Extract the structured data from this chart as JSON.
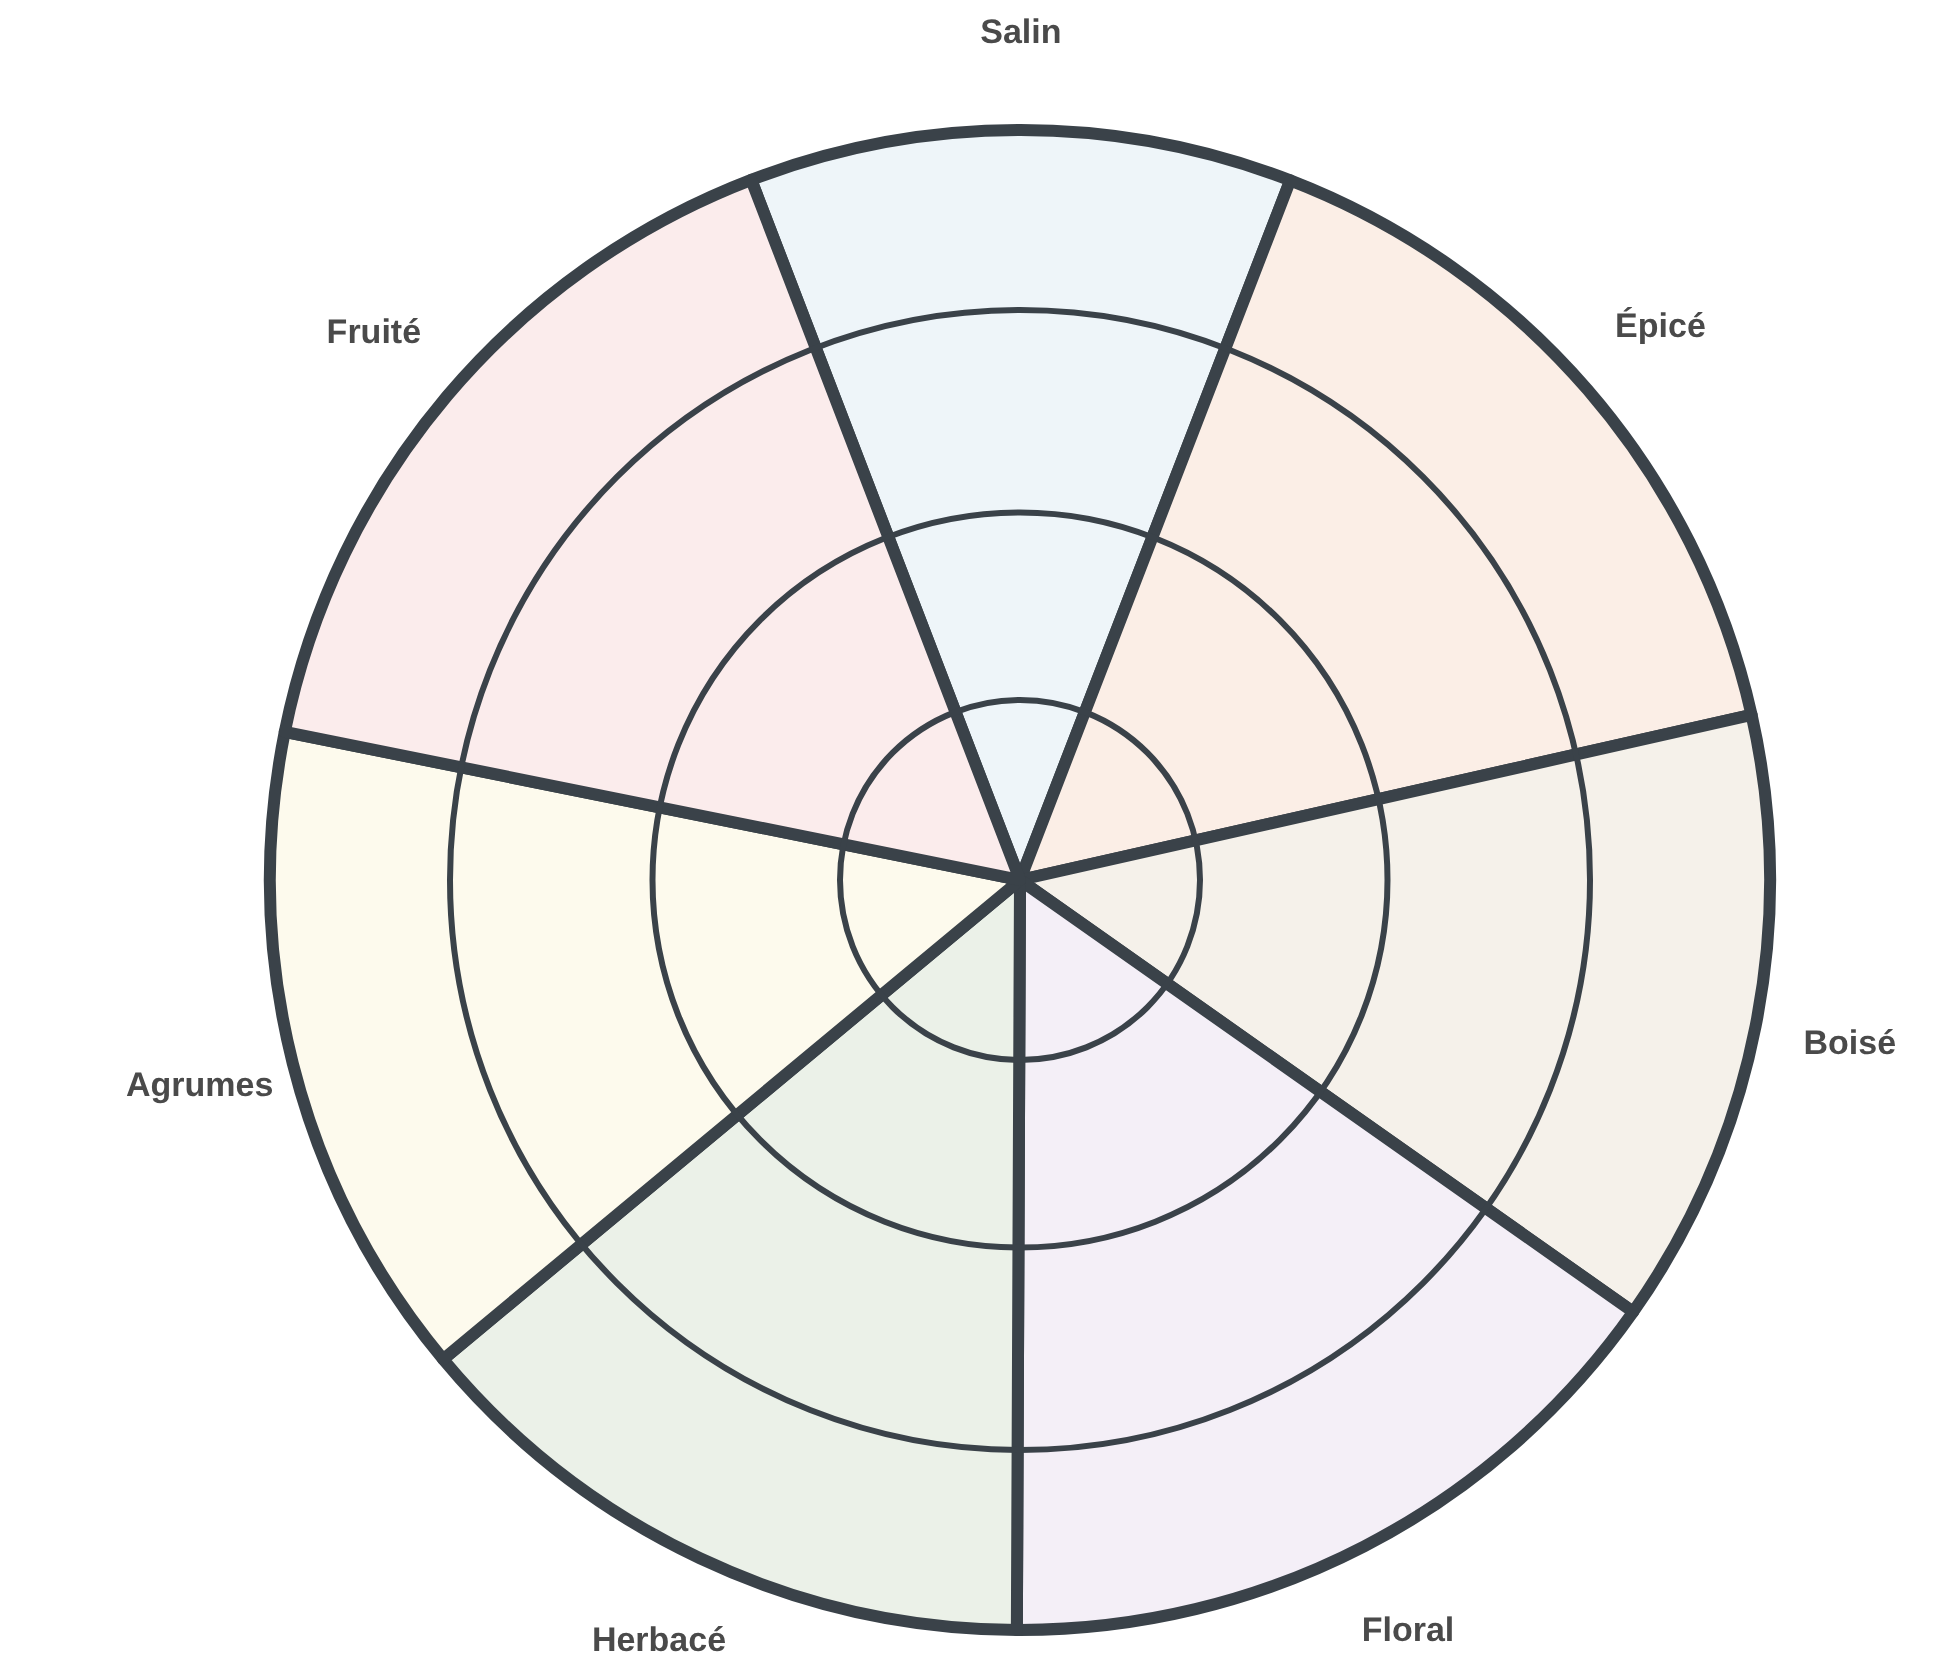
{
  "chart_data": {
    "type": "pie",
    "categories": [
      "Salin",
      "Épicé",
      "Boisé",
      "Floral",
      "Herbacé",
      "Agrumes",
      "Fruité"
    ],
    "values": [
      11.7,
      15.6,
      13.3,
      15.3,
      13.9,
      14.2,
      16.0
    ],
    "colors": [
      "#eef5f9",
      "#fbeee6",
      "#f5f1ea",
      "#f4eff7",
      "#ebf1e8",
      "#fdfaed",
      "#fbecec"
    ],
    "grid": true,
    "legend": false
  }
}
